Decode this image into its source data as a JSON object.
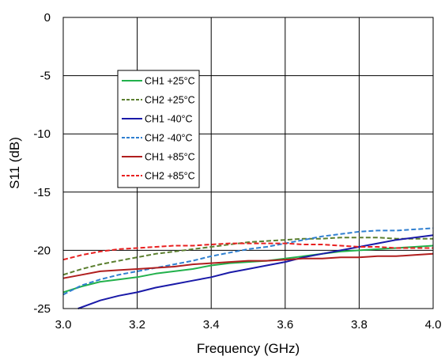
{
  "chart_data": {
    "type": "line",
    "title": "",
    "xlabel": "Frequency (GHz)",
    "ylabel": "S11 (dB)",
    "xlim": [
      3.0,
      4.0
    ],
    "ylim": [
      -25,
      0
    ],
    "x_ticks": [
      "3.0",
      "3.2",
      "3.4",
      "3.6",
      "3.8",
      "4.0"
    ],
    "y_ticks": [
      "0",
      "-5",
      "-10",
      "-15",
      "-20",
      "-25"
    ],
    "grid": true,
    "legend_position": "upper-left",
    "series": [
      {
        "name": "CH1 +25°C",
        "color": "#22b14c",
        "dash": "solid",
        "x": [
          3.0,
          3.05,
          3.1,
          3.15,
          3.2,
          3.25,
          3.3,
          3.35,
          3.4,
          3.45,
          3.5,
          3.55,
          3.6,
          3.65,
          3.7,
          3.75,
          3.8,
          3.85,
          3.9,
          3.95,
          4.0
        ],
        "y": [
          -23.6,
          -23.1,
          -22.7,
          -22.5,
          -22.3,
          -22.0,
          -21.8,
          -21.6,
          -21.3,
          -21.1,
          -21.0,
          -20.9,
          -20.7,
          -20.5,
          -20.3,
          -20.1,
          -20.0,
          -19.9,
          -19.8,
          -19.7,
          -19.6
        ]
      },
      {
        "name": "CH2 +25°C",
        "color": "#5b7f2f",
        "dash": "6,3",
        "x": [
          3.0,
          3.05,
          3.1,
          3.15,
          3.2,
          3.25,
          3.3,
          3.35,
          3.4,
          3.45,
          3.5,
          3.55,
          3.6,
          3.65,
          3.7,
          3.75,
          3.8,
          3.85,
          3.9,
          3.95,
          4.0
        ],
        "y": [
          -22.1,
          -21.6,
          -21.2,
          -20.9,
          -20.6,
          -20.3,
          -20.1,
          -19.9,
          -19.7,
          -19.5,
          -19.3,
          -19.2,
          -19.1,
          -19.0,
          -19.0,
          -18.9,
          -18.9,
          -18.9,
          -19.0,
          -19.0,
          -19.0
        ]
      },
      {
        "name": "CH1 -40°C",
        "color": "#1a1aa8",
        "dash": "solid",
        "x": [
          3.04,
          3.1,
          3.15,
          3.2,
          3.25,
          3.3,
          3.35,
          3.4,
          3.45,
          3.5,
          3.55,
          3.6,
          3.65,
          3.7,
          3.75,
          3.8,
          3.85,
          3.9,
          3.95,
          4.0
        ],
        "y": [
          -25.0,
          -24.3,
          -23.9,
          -23.6,
          -23.2,
          -22.9,
          -22.6,
          -22.3,
          -21.9,
          -21.6,
          -21.3,
          -21.0,
          -20.6,
          -20.3,
          -20.0,
          -19.7,
          -19.4,
          -19.1,
          -18.9,
          -18.7
        ]
      },
      {
        "name": "CH2 -40°C",
        "color": "#2f7fd0",
        "dash": "6,3",
        "x": [
          3.0,
          3.05,
          3.1,
          3.15,
          3.2,
          3.25,
          3.3,
          3.35,
          3.4,
          3.45,
          3.5,
          3.55,
          3.6,
          3.65,
          3.7,
          3.75,
          3.8,
          3.85,
          3.9,
          3.95,
          4.0
        ],
        "y": [
          -23.8,
          -23.0,
          -22.5,
          -22.1,
          -21.8,
          -21.5,
          -21.2,
          -20.9,
          -20.5,
          -20.2,
          -19.9,
          -19.7,
          -19.4,
          -19.1,
          -18.8,
          -18.6,
          -18.4,
          -18.3,
          -18.3,
          -18.2,
          -18.1
        ]
      },
      {
        "name": "CH1 +85°C",
        "color": "#b01e1e",
        "dash": "solid",
        "x": [
          3.0,
          3.05,
          3.1,
          3.15,
          3.2,
          3.25,
          3.3,
          3.35,
          3.4,
          3.45,
          3.5,
          3.55,
          3.6,
          3.65,
          3.7,
          3.75,
          3.8,
          3.85,
          3.9,
          3.95,
          4.0
        ],
        "y": [
          -22.4,
          -22.1,
          -21.8,
          -21.7,
          -21.6,
          -21.5,
          -21.4,
          -21.2,
          -21.1,
          -21.0,
          -20.9,
          -20.9,
          -20.8,
          -20.7,
          -20.7,
          -20.6,
          -20.6,
          -20.5,
          -20.5,
          -20.4,
          -20.3
        ]
      },
      {
        "name": "CH2 +85°C",
        "color": "#e82020",
        "dash": "6,3",
        "x": [
          3.0,
          3.05,
          3.1,
          3.15,
          3.2,
          3.25,
          3.3,
          3.35,
          3.4,
          3.45,
          3.5,
          3.55,
          3.6,
          3.65,
          3.7,
          3.75,
          3.8,
          3.85,
          3.9,
          3.95,
          4.0
        ],
        "y": [
          -20.8,
          -20.4,
          -20.1,
          -19.9,
          -19.8,
          -19.7,
          -19.6,
          -19.6,
          -19.5,
          -19.4,
          -19.4,
          -19.4,
          -19.4,
          -19.5,
          -19.5,
          -19.6,
          -19.7,
          -19.7,
          -19.8,
          -19.8,
          -19.8
        ]
      }
    ]
  }
}
